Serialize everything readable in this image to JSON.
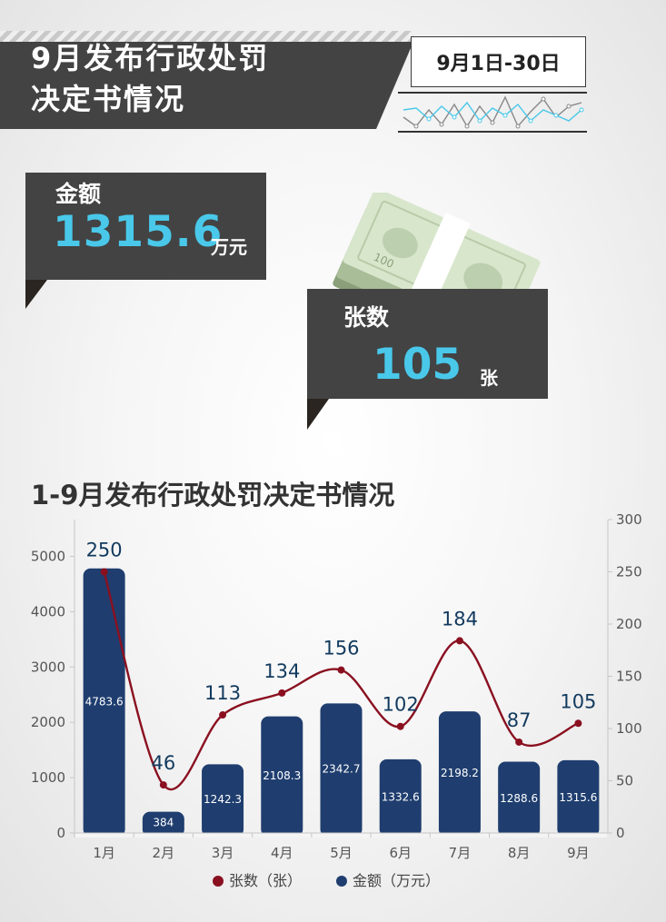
{
  "header": {
    "title_line1": "9月发布行政处罚",
    "title_line2": "决定书情况",
    "date_range": "9月1日-30日"
  },
  "amount_card": {
    "label": "金额",
    "value": "1315.6",
    "unit": "万元"
  },
  "count_card": {
    "label": "张数",
    "value": "105",
    "unit": "张"
  },
  "banknote_text": "100",
  "colors": {
    "bar": "#1f3e6f",
    "line": "#8a1020",
    "accent": "#49c8ea",
    "card": "#434343"
  },
  "chart_data": {
    "type": "bar+line",
    "title": "1-9月发布行政处罚决定书情况",
    "categories": [
      "1月",
      "2月",
      "3月",
      "4月",
      "5月",
      "6月",
      "7月",
      "8月",
      "9月"
    ],
    "series": [
      {
        "name": "金额（万元）",
        "type": "bar",
        "axis": "left",
        "values": [
          4783.6,
          384,
          1242.3,
          2108.3,
          2342.7,
          1332.6,
          2198.2,
          1288.6,
          1315.6
        ],
        "labels": [
          "4783.6",
          "384",
          "1242.3",
          "2108.3",
          "2342.7",
          "1332.6",
          "2198.2",
          "1288.6",
          "1315.6"
        ]
      },
      {
        "name": "张数（张）",
        "type": "line",
        "axis": "right",
        "values": [
          250,
          46,
          113,
          134,
          156,
          102,
          184,
          87,
          105
        ],
        "labels": [
          "250",
          "46",
          "113",
          "134",
          "156",
          "102",
          "184",
          "87",
          "105"
        ]
      }
    ],
    "y_left": {
      "min": 0,
      "max": 5666,
      "ticks": [
        0,
        1000,
        2000,
        3000,
        4000,
        5000
      ]
    },
    "y_right": {
      "min": 0,
      "max": 300,
      "ticks": [
        0,
        50,
        100,
        150,
        200,
        250,
        300
      ]
    },
    "legend": "bottom-center",
    "grid": false
  }
}
